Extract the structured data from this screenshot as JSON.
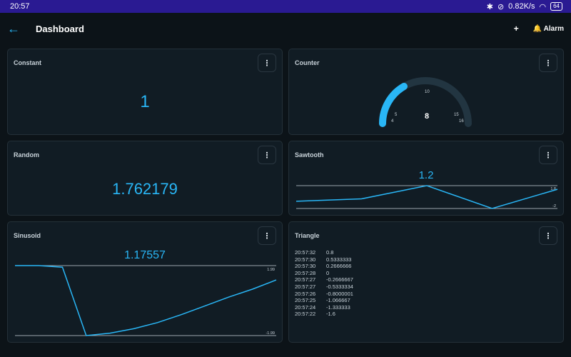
{
  "status": {
    "time": "20:57",
    "speed": "0.82K/s",
    "battery": "64"
  },
  "appbar": {
    "title": "Dashboard",
    "add_label": "+",
    "alarm_label": "🔔 Alarm"
  },
  "cards": {
    "constant": {
      "title": "Constant",
      "value": "1"
    },
    "counter": {
      "title": "Counter",
      "value": "8",
      "gauge": {
        "min": 4,
        "max": 16,
        "value": 8,
        "ticks": [
          "4",
          "5",
          "10",
          "15",
          "16"
        ]
      }
    },
    "random": {
      "title": "Random",
      "value": "1.762179"
    },
    "sawtooth": {
      "title": "Sawtooth",
      "value": "1.2",
      "max_label": "1.8",
      "min_label": "-2"
    },
    "sinusoid": {
      "title": "Sinusoid",
      "value": "1.17557",
      "max_label": "1.99",
      "min_label": "-1.99"
    },
    "triangle": {
      "title": "Triangle",
      "log": [
        {
          "time": "20:57:32",
          "value": "0.8"
        },
        {
          "time": "20:57:30",
          "value": "0.5333333"
        },
        {
          "time": "20:57:30",
          "value": "0.2666666"
        },
        {
          "time": "20:57:28",
          "value": "0"
        },
        {
          "time": "20:57:27",
          "value": "-0.2666667"
        },
        {
          "time": "20:57:27",
          "value": "-0.5333334"
        },
        {
          "time": "20:57:26",
          "value": "-0.8000001"
        },
        {
          "time": "20:57:25",
          "value": "-1.066667"
        },
        {
          "time": "20:57:24",
          "value": "-1.333333"
        },
        {
          "time": "20:57:22",
          "value": "-1.6"
        }
      ]
    }
  },
  "chart_data": [
    {
      "type": "line",
      "name": "sawtooth",
      "ylim": [
        -2,
        1.8
      ],
      "values": [
        -0.8,
        -0.4,
        1.8,
        -2.0,
        1.2
      ]
    },
    {
      "type": "line",
      "name": "sinusoid",
      "ylim": [
        -1.99,
        1.99
      ],
      "values": [
        1.99,
        1.99,
        1.9,
        -1.99,
        -1.85,
        -1.6,
        -1.25,
        -0.8,
        -0.3,
        0.2,
        0.65,
        1.17557
      ]
    }
  ],
  "colors": {
    "accent": "#29b6f6",
    "card_bg": "#111c24",
    "status_bar": "#2a1a92"
  }
}
